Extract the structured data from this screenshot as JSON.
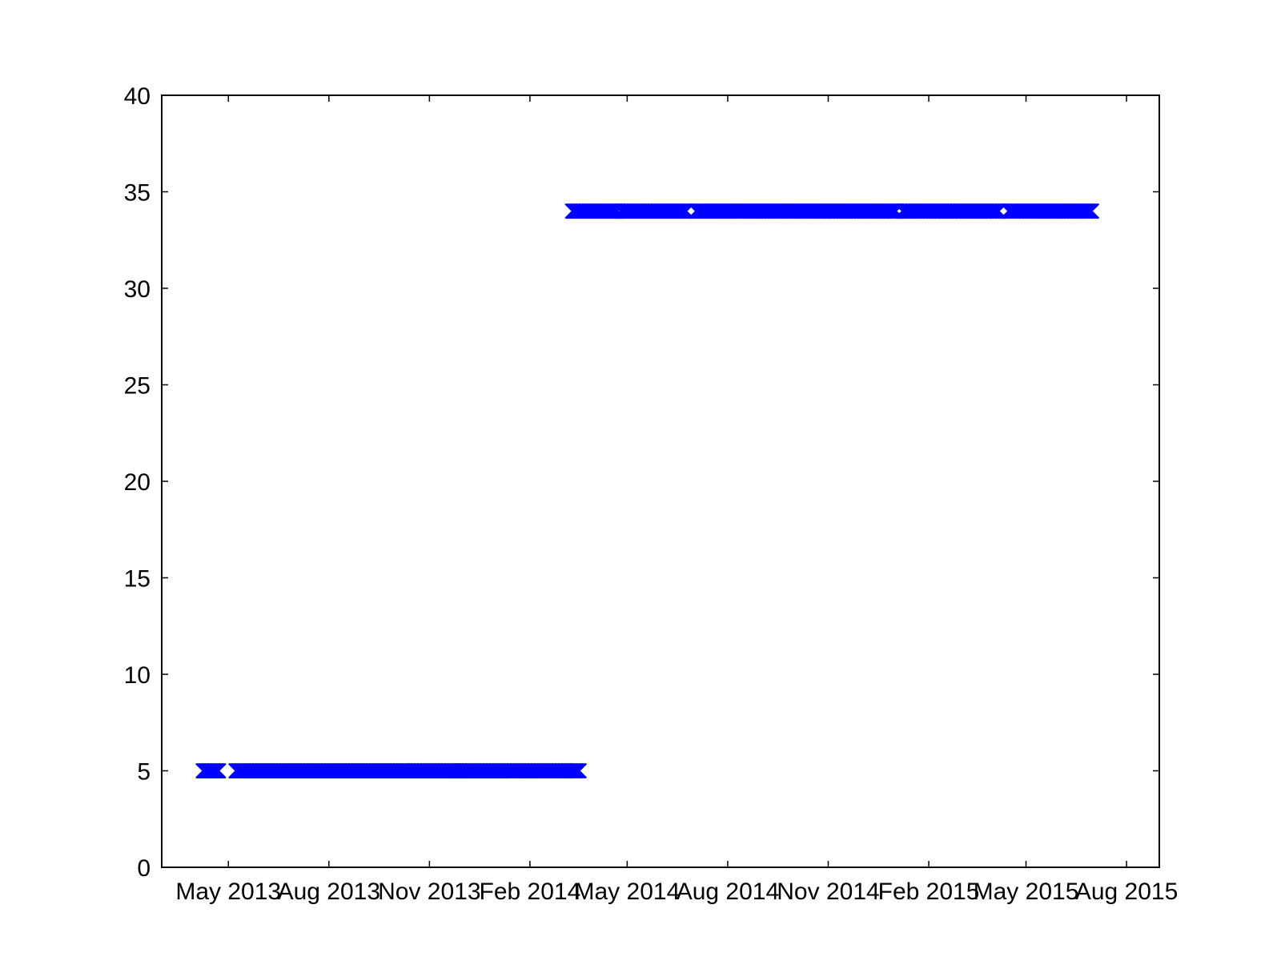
{
  "chart_data": {
    "type": "scatter",
    "title": "",
    "xlabel": "",
    "ylabel": "",
    "x_axis_type": "date",
    "xlim": [
      "2013-03-01",
      "2015-08-31"
    ],
    "ylim": [
      0,
      40
    ],
    "x_ticks": [
      {
        "date": "2013-05-01",
        "label": "May 2013"
      },
      {
        "date": "2013-08-01",
        "label": "Aug 2013"
      },
      {
        "date": "2013-11-01",
        "label": "Nov 2013"
      },
      {
        "date": "2014-02-01",
        "label": "Feb 2014"
      },
      {
        "date": "2014-05-01",
        "label": "May 2014"
      },
      {
        "date": "2014-08-01",
        "label": "Aug 2014"
      },
      {
        "date": "2014-11-01",
        "label": "Nov 2014"
      },
      {
        "date": "2015-02-01",
        "label": "Feb 2015"
      },
      {
        "date": "2015-05-01",
        "label": "May 2015"
      },
      {
        "date": "2015-08-01",
        "label": "Aug 2015"
      }
    ],
    "y_ticks": [
      0,
      5,
      10,
      15,
      20,
      25,
      30,
      35,
      40
    ],
    "grid": false,
    "marker": "x",
    "series": [
      {
        "color": "#0000ff",
        "segments": [
          {
            "start": "2013-04-08",
            "end": "2013-04-22",
            "y": 5
          },
          {
            "start": "2013-05-08",
            "end": "2013-11-28",
            "y": 5
          },
          {
            "start": "2013-11-29",
            "end": "2014-03-18",
            "y": 5
          },
          {
            "start": "2014-03-12",
            "end": "2014-04-22",
            "y": 34
          },
          {
            "start": "2014-04-25",
            "end": "2014-06-24",
            "y": 34
          },
          {
            "start": "2014-07-03",
            "end": "2015-01-02",
            "y": 34
          },
          {
            "start": "2015-01-08",
            "end": "2015-04-06",
            "y": 34
          },
          {
            "start": "2015-04-15",
            "end": "2015-06-30",
            "y": 34
          }
        ]
      }
    ]
  }
}
